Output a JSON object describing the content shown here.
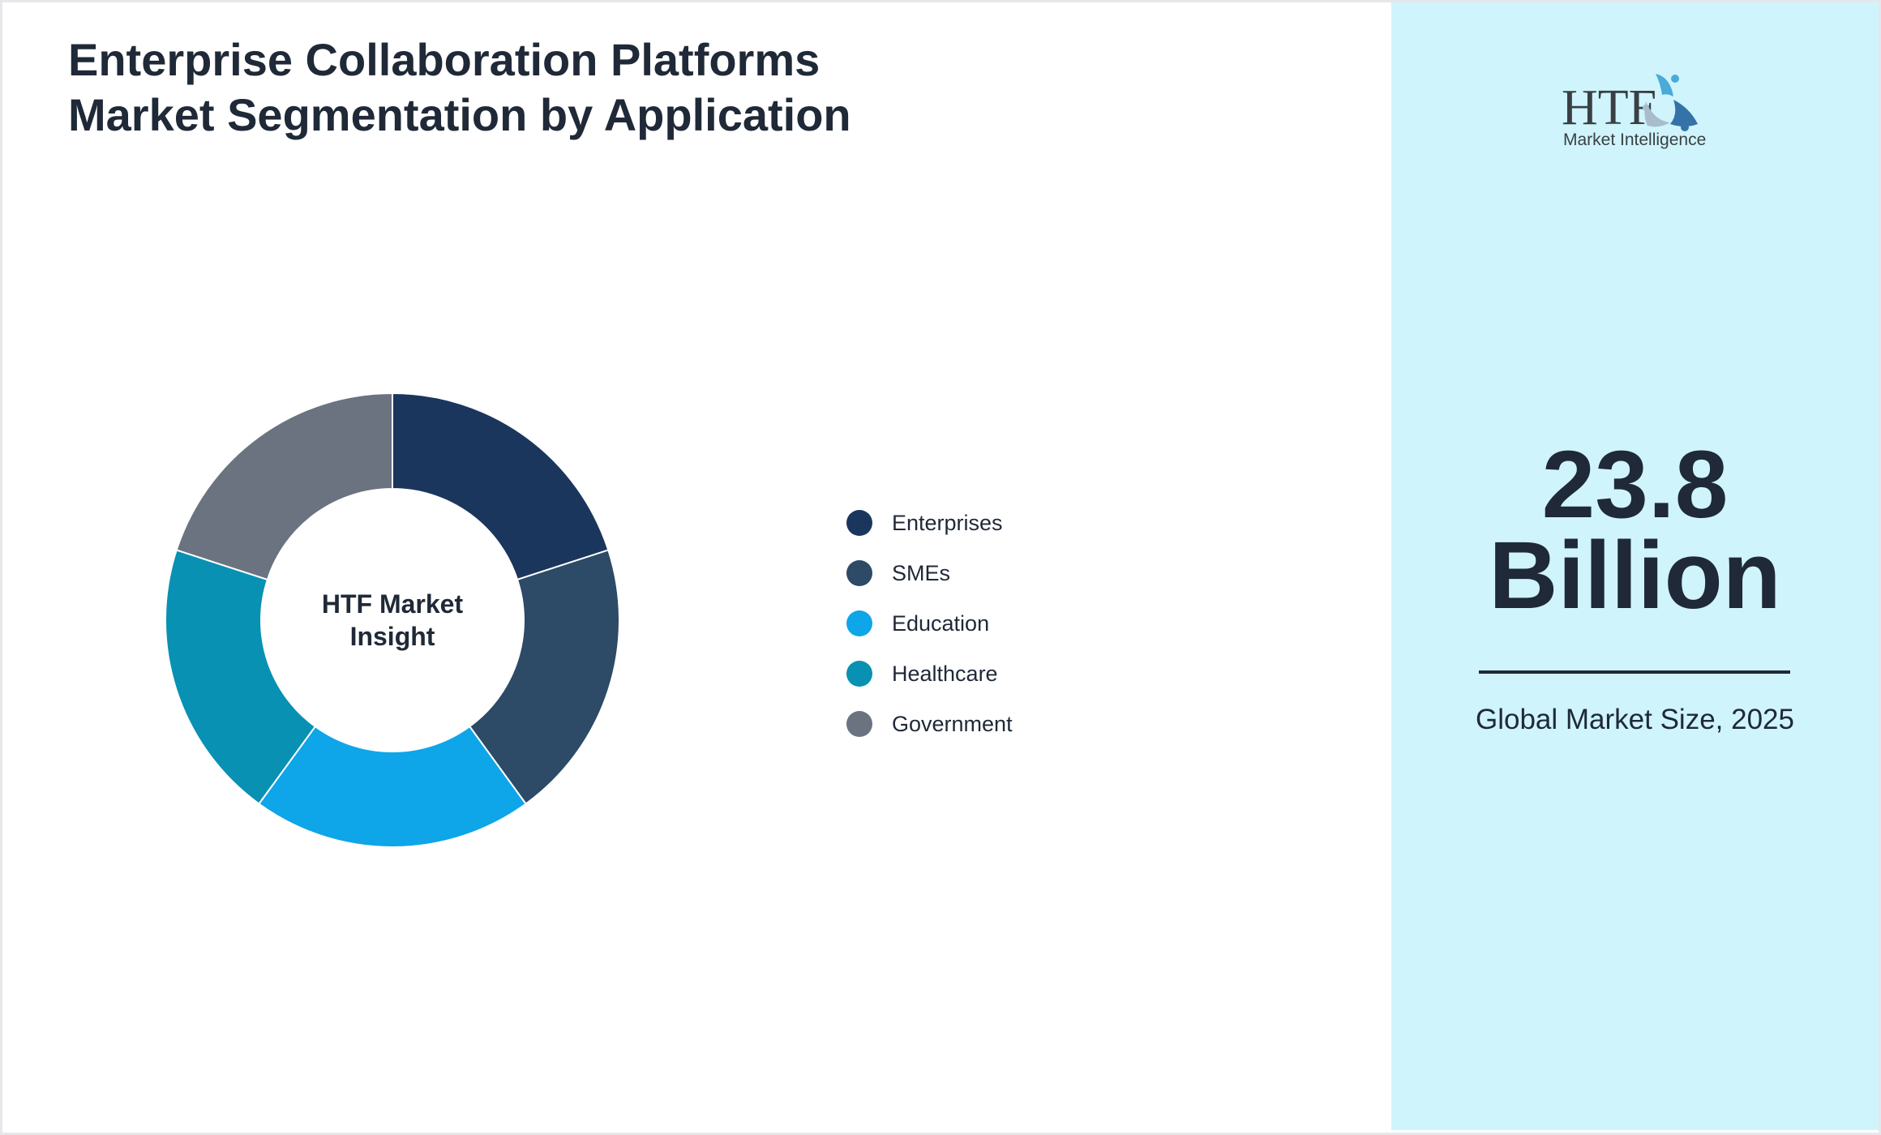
{
  "title": "Enterprise Collaboration Platforms Market Segmentation by Application",
  "chart_data": {
    "type": "pie",
    "subtype": "donut",
    "center_label": "HTF Market Insight",
    "categories": [
      "Enterprises",
      "SMEs",
      "Education",
      "Healthcare",
      "Government"
    ],
    "values": [
      20,
      20,
      20,
      20,
      20
    ],
    "colors": [
      "#1b365d",
      "#2d4a66",
      "#0ea5e9",
      "#0891b2",
      "#6b7280"
    ],
    "legend_position": "right"
  },
  "logo": {
    "text_main": "HTF",
    "text_sub": "Market Intelligence"
  },
  "stat": {
    "value": "23.8",
    "unit": "Billion",
    "caption": "Global Market Size, 2025"
  },
  "colors": {
    "side_panel": "#cff4fc",
    "text": "#1f2937"
  }
}
